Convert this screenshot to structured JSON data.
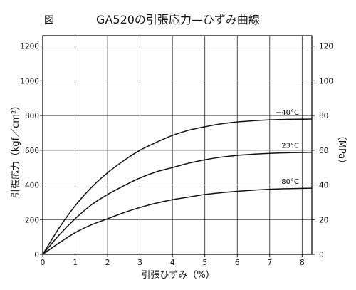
{
  "figure_label": "図",
  "chart_data": {
    "type": "line",
    "title": "GA520の引張応力—ひずみ曲線",
    "xlabel": "引張ひずみ（%）",
    "ylabel": "引張応力（kgf／cm²）",
    "y2label": "（MPa）",
    "xlim": [
      0,
      8.3
    ],
    "ylim": [
      0,
      1260
    ],
    "y2lim": [
      0,
      126
    ],
    "x_ticks": [
      0,
      1,
      2,
      3,
      4,
      5,
      6,
      7,
      8
    ],
    "y_ticks": [
      0,
      200,
      400,
      600,
      800,
      1000,
      1200
    ],
    "y2_ticks": [
      0,
      20,
      40,
      60,
      80,
      100,
      120
    ],
    "grid": true,
    "series": [
      {
        "name": "−40°C",
        "x": [
          0,
          0.5,
          1,
          1.5,
          2,
          2.5,
          3,
          3.5,
          4,
          4.5,
          5,
          5.5,
          6,
          6.5,
          7,
          7.5,
          8,
          8.3
        ],
        "y": [
          0,
          150,
          280,
          385,
          470,
          540,
          600,
          645,
          685,
          715,
          735,
          752,
          763,
          770,
          775,
          778,
          779,
          780
        ]
      },
      {
        "name": "23°C",
        "x": [
          0,
          0.5,
          1,
          1.5,
          2,
          2.5,
          3,
          3.5,
          4,
          4.5,
          5,
          5.5,
          6,
          6.5,
          7,
          7.5,
          8,
          8.3
        ],
        "y": [
          0,
          110,
          205,
          285,
          345,
          395,
          440,
          475,
          500,
          525,
          545,
          560,
          570,
          577,
          582,
          585,
          587,
          588
        ]
      },
      {
        "name": "80°C",
        "x": [
          0,
          0.5,
          1,
          1.5,
          2,
          2.5,
          3,
          3.5,
          4,
          4.5,
          5,
          5.5,
          6,
          6.5,
          7,
          7.5,
          8,
          8.3
        ],
        "y": [
          0,
          65,
          125,
          170,
          205,
          240,
          270,
          295,
          315,
          330,
          345,
          355,
          363,
          370,
          375,
          378,
          380,
          381
        ]
      }
    ]
  }
}
